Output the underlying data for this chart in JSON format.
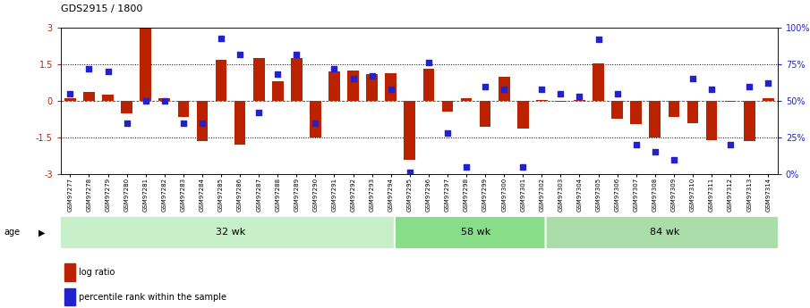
{
  "title": "GDS2915 / 1800",
  "samples": [
    "GSM97277",
    "GSM97278",
    "GSM97279",
    "GSM97280",
    "GSM97281",
    "GSM97282",
    "GSM97283",
    "GSM97284",
    "GSM97285",
    "GSM97286",
    "GSM97287",
    "GSM97288",
    "GSM97289",
    "GSM97290",
    "GSM97291",
    "GSM97292",
    "GSM97293",
    "GSM97294",
    "GSM97295",
    "GSM97296",
    "GSM97297",
    "GSM97298",
    "GSM97299",
    "GSM97300",
    "GSM97301",
    "GSM97302",
    "GSM97303",
    "GSM97304",
    "GSM97305",
    "GSM97306",
    "GSM97307",
    "GSM97308",
    "GSM97309",
    "GSM97310",
    "GSM97311",
    "GSM97312",
    "GSM97313",
    "GSM97314"
  ],
  "log_ratio": [
    0.1,
    0.35,
    0.25,
    -0.5,
    3.0,
    0.1,
    -0.65,
    -1.65,
    1.7,
    -1.8,
    1.75,
    0.8,
    1.75,
    -1.5,
    1.2,
    1.25,
    1.1,
    1.15,
    -2.4,
    1.3,
    -0.45,
    0.1,
    -1.05,
    1.0,
    -1.15,
    0.05,
    -0.05,
    0.05,
    1.55,
    -0.75,
    -0.95,
    -1.5,
    -0.65,
    -0.9,
    -1.6,
    -0.05,
    -1.65,
    0.1
  ],
  "percentile": [
    55,
    72,
    70,
    35,
    50,
    50,
    35,
    35,
    93,
    82,
    42,
    68,
    82,
    35,
    72,
    65,
    67,
    58,
    1,
    76,
    28,
    5,
    60,
    58,
    5,
    58,
    55,
    53,
    92,
    55,
    20,
    15,
    10,
    65,
    58,
    20,
    60,
    62
  ],
  "groups": [
    {
      "label": "32 wk",
      "start": 0,
      "end": 18,
      "color": "#c8f0c8"
    },
    {
      "label": "58 wk",
      "start": 18,
      "end": 26,
      "color": "#88dd88"
    },
    {
      "label": "84 wk",
      "start": 26,
      "end": 38,
      "color": "#aaddaa"
    }
  ],
  "ylim": [
    -3,
    3
  ],
  "yticks_left": [
    -3,
    -1.5,
    0,
    1.5,
    3
  ],
  "yticks_right_vals": [
    0,
    25,
    50,
    75,
    100
  ],
  "yticks_right_labels": [
    "0%",
    "25%",
    "50%",
    "75%",
    "100%"
  ],
  "hlines_dotted": [
    -1.5,
    1.5
  ],
  "hline_zero": 0,
  "bar_color": "#bb2200",
  "dot_color": "#2222cc",
  "bg_color": "#ffffff",
  "xticklabel_bg": "#e0e0e0",
  "legend_bar": "log ratio",
  "legend_dot": "percentile rank within the sample",
  "age_label": "age"
}
